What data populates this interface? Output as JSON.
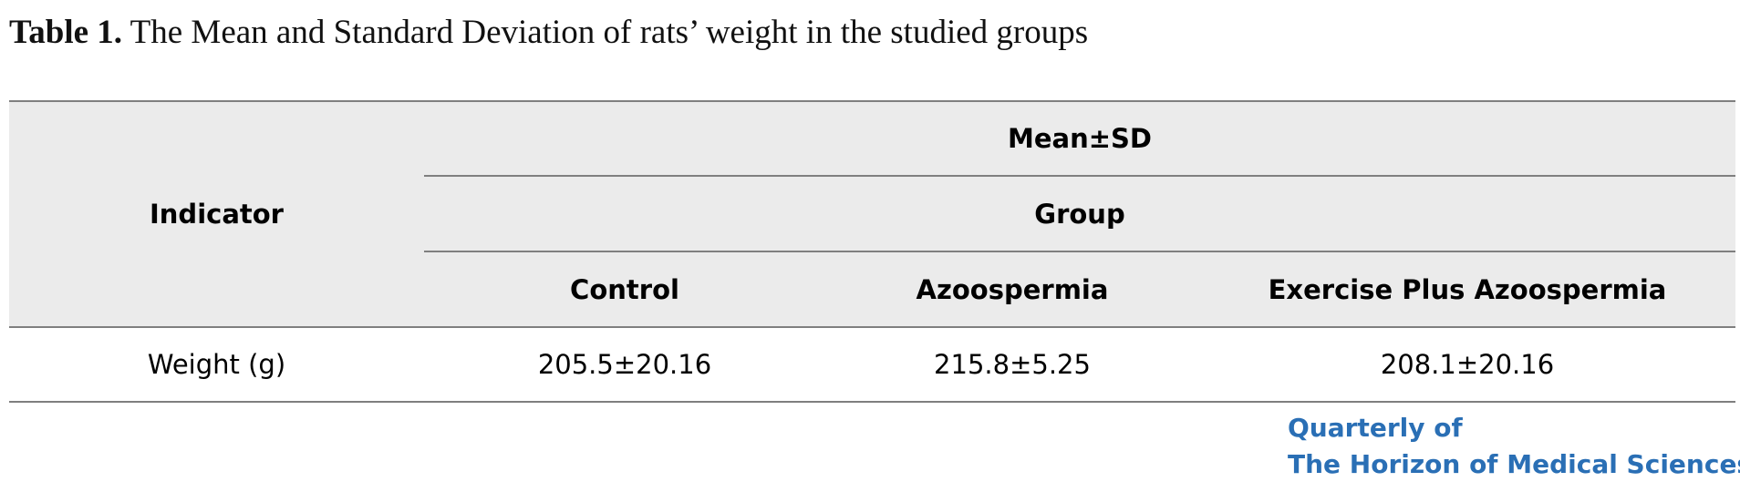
{
  "caption": {
    "label": "Table 1.",
    "text": " The Mean and Standard Deviation of rats’ weight in the studied groups"
  },
  "table": {
    "row_header": "Indicator",
    "stat_header": "Mean±SD",
    "group_header": "Group",
    "columns": [
      "Control",
      "Azoospermia",
      "Exercise Plus Azoospermia"
    ],
    "rows": [
      {
        "indicator": "Weight (g)",
        "values": [
          "205.5±20.16",
          "215.8±5.25",
          "208.1±20.16"
        ]
      }
    ]
  },
  "journal_logo": {
    "line1": "Quarterly of",
    "line2": "The Horizon of Medical Sciences",
    "color": "#2a6fb5"
  }
}
